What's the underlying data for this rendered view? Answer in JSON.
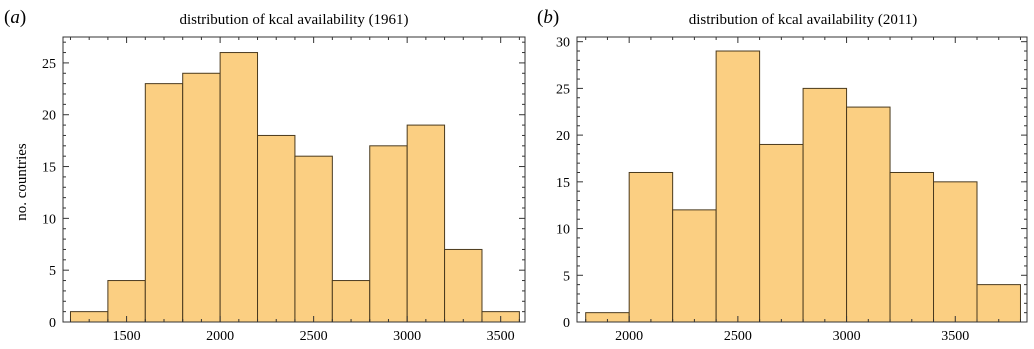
{
  "chart_data": [
    {
      "type": "bar",
      "panel": "a",
      "title": "distribution of kcal availability (1961)",
      "xlabel": "",
      "ylabel": "no. countries",
      "bin_edges": [
        1200,
        1400,
        1600,
        1800,
        2000,
        2200,
        2400,
        2600,
        2800,
        3000,
        3200,
        3400,
        3600
      ],
      "values": [
        1,
        4,
        23,
        24,
        26,
        18,
        16,
        4,
        17,
        19,
        7,
        1
      ],
      "xlim": [
        1160,
        3630
      ],
      "ylim": [
        0,
        27.5
      ],
      "xticks": [
        1500,
        2000,
        2500,
        3000,
        3500
      ],
      "yticks": [
        0,
        5,
        10,
        15,
        20,
        25
      ],
      "bar_color": "#fbcf82"
    },
    {
      "type": "bar",
      "panel": "b",
      "title": "distribution of kcal availability (2011)",
      "xlabel": "",
      "ylabel": "",
      "bin_edges": [
        1800,
        2000,
        2200,
        2400,
        2600,
        2800,
        3000,
        3200,
        3400,
        3600,
        3800
      ],
      "values": [
        1,
        16,
        12,
        29,
        19,
        25,
        23,
        16,
        15,
        4
      ],
      "xlim": [
        1760,
        3830
      ],
      "ylim": [
        0,
        30.5
      ],
      "xticks": [
        2000,
        2500,
        3000,
        3500
      ],
      "yticks": [
        0,
        5,
        10,
        15,
        20,
        25,
        30
      ],
      "bar_color": "#fbcf82"
    }
  ]
}
